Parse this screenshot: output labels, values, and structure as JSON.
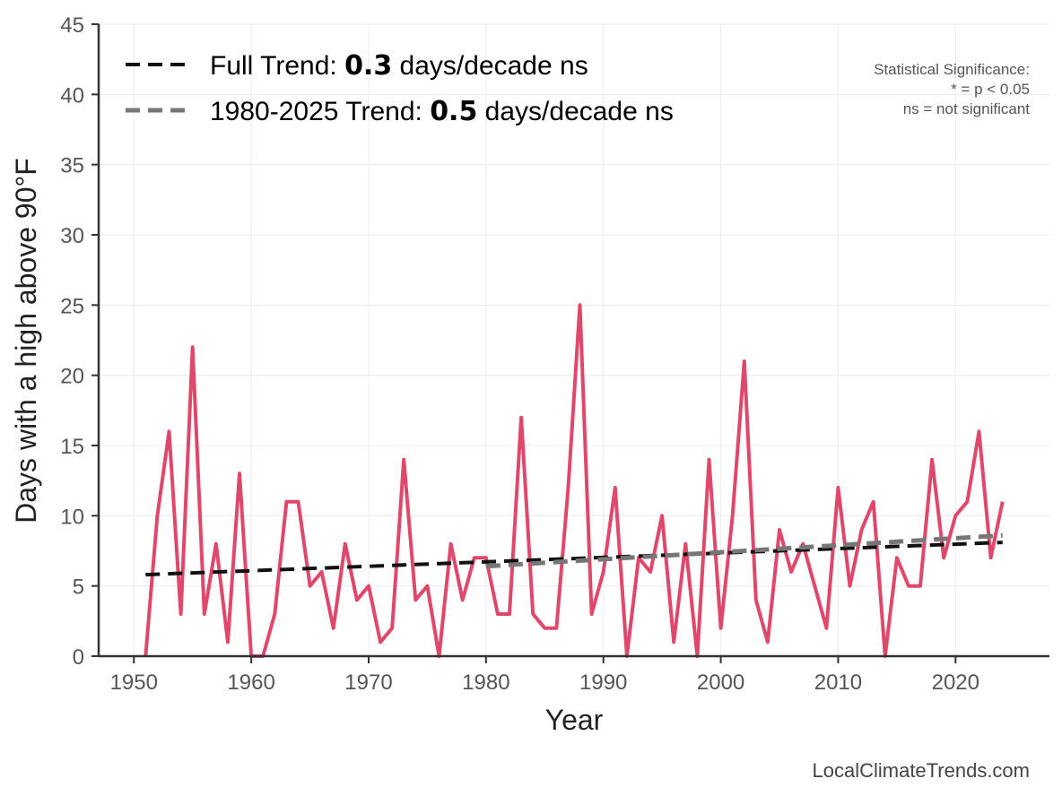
{
  "chart_data": {
    "type": "line",
    "xlabel": "Year",
    "ylabel": "Days with a high above 90°F",
    "xlim": [
      1947,
      2028
    ],
    "ylim": [
      0,
      45
    ],
    "x_ticks": [
      1950,
      1960,
      1970,
      1980,
      1990,
      2000,
      2010,
      2020
    ],
    "y_ticks": [
      0,
      5,
      10,
      15,
      20,
      25,
      30,
      35,
      40,
      45
    ],
    "grid": true,
    "legend_position": "top-left",
    "series": [
      {
        "kind": "observed",
        "color": "#e0486b",
        "x": [
          1951,
          1952,
          1953,
          1954,
          1955,
          1956,
          1957,
          1958,
          1959,
          1960,
          1961,
          1962,
          1963,
          1964,
          1965,
          1966,
          1967,
          1968,
          1969,
          1970,
          1971,
          1972,
          1973,
          1974,
          1975,
          1976,
          1977,
          1978,
          1979,
          1980,
          1981,
          1982,
          1983,
          1984,
          1985,
          1986,
          1987,
          1988,
          1989,
          1990,
          1991,
          1992,
          1993,
          1994,
          1995,
          1996,
          1997,
          1998,
          1999,
          2000,
          2001,
          2002,
          2003,
          2004,
          2005,
          2006,
          2007,
          2008,
          2009,
          2010,
          2011,
          2012,
          2013,
          2014,
          2015,
          2016,
          2017,
          2018,
          2019,
          2020,
          2021,
          2022,
          2023,
          2024
        ],
        "values": [
          0,
          10,
          16,
          3,
          22,
          3,
          8,
          1,
          13,
          0,
          0,
          3,
          11,
          11,
          5,
          6,
          2,
          8,
          4,
          5,
          1,
          2,
          14,
          4,
          5,
          0,
          8,
          4,
          7,
          7,
          3,
          3,
          17,
          3,
          2,
          2,
          12,
          25,
          3,
          6,
          12,
          0,
          7,
          6,
          10,
          1,
          8,
          0,
          14,
          2,
          10,
          21,
          4,
          1,
          9,
          6,
          8,
          5,
          2,
          12,
          5,
          9,
          11,
          0,
          7,
          5,
          5,
          14,
          7,
          10,
          11,
          16,
          7,
          11
        ]
      },
      {
        "name": "Full Trend",
        "kind": "trend",
        "color": "#111111",
        "dash": "dashed",
        "x": [
          1951,
          2024
        ],
        "values": [
          5.8,
          8.1
        ]
      },
      {
        "name": "1980-2025 Trend",
        "kind": "trend",
        "color": "#777777",
        "dash": "dashed",
        "x": [
          1980,
          2024
        ],
        "values": [
          6.4,
          8.6
        ]
      }
    ],
    "legend": [
      {
        "prefix": "Full Trend: ",
        "value": "0.3",
        "suffix": " days/decade ns",
        "color": "#111111"
      },
      {
        "prefix": "1980-2025 Trend: ",
        "value": "0.5",
        "suffix": " days/decade ns",
        "color": "#777777"
      }
    ],
    "annotation": {
      "lines": [
        "Statistical Significance:",
        "* = p < 0.05",
        "ns = not significant"
      ]
    },
    "credit": "LocalClimateTrends.com"
  }
}
